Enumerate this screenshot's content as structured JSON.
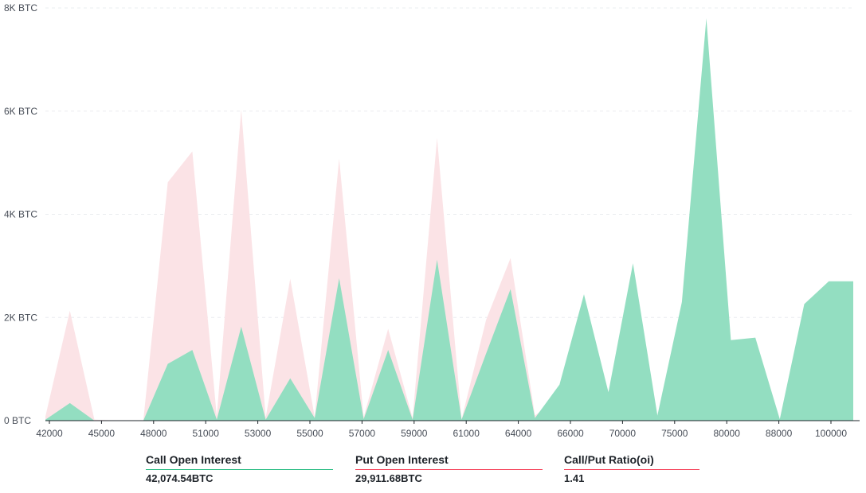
{
  "chart_data": {
    "type": "area",
    "y_unit": "BTC",
    "ylim": [
      0,
      8000
    ],
    "y_ticks": [
      {
        "value": 0,
        "label": "0 BTC"
      },
      {
        "value": 2000,
        "label": "2K BTC"
      },
      {
        "value": 4000,
        "label": "4K BTC"
      },
      {
        "value": 6000,
        "label": "6K BTC"
      },
      {
        "value": 8000,
        "label": "8K BTC"
      }
    ],
    "grid": true,
    "x": [
      42000,
      43000,
      45000,
      46000,
      47000,
      48000,
      50000,
      51000,
      52000,
      53000,
      54000,
      55000,
      56000,
      57000,
      58000,
      59000,
      60000,
      61000,
      63000,
      64000,
      65000,
      66000,
      67000,
      68000,
      70000,
      72000,
      75000,
      76000,
      80000,
      85000,
      88000,
      90000,
      100000,
      110000
    ],
    "x_tick_labels": [
      "42000",
      "45000",
      "48000",
      "51000",
      "53000",
      "55000",
      "57000",
      "59000",
      "61000",
      "64000",
      "66000",
      "70000",
      "75000",
      "80000",
      "88000",
      "100000"
    ],
    "series": [
      {
        "name": "Call Open Interest",
        "color": "#93dec1",
        "values": [
          20,
          340,
          0,
          0,
          0,
          1100,
          1370,
          20,
          1820,
          20,
          820,
          50,
          2760,
          30,
          1370,
          20,
          3120,
          20,
          1300,
          2550,
          50,
          700,
          2450,
          550,
          3050,
          100,
          2300,
          7800,
          1560,
          1610,
          30,
          2260,
          2700,
          2700
        ]
      },
      {
        "name": "Put Open Interest",
        "color": "#fbe3e6",
        "values": [
          80,
          2130,
          20,
          0,
          0,
          4620,
          5220,
          80,
          6030,
          60,
          2750,
          70,
          5080,
          70,
          1780,
          50,
          5480,
          30,
          1950,
          3150,
          100,
          450,
          1050,
          400,
          800,
          30,
          500,
          1200,
          700,
          400,
          20,
          400,
          300,
          300
        ]
      }
    ]
  },
  "stats": [
    {
      "label": "Call Open Interest",
      "value": "42,074.54BTC",
      "color": "#2ebd85"
    },
    {
      "label": "Put Open Interest",
      "value": "29,911.68BTC",
      "color": "#f6465d"
    },
    {
      "label": "Call/Put Ratio(oi)",
      "value": "1.41",
      "color": "#f6465d"
    }
  ]
}
